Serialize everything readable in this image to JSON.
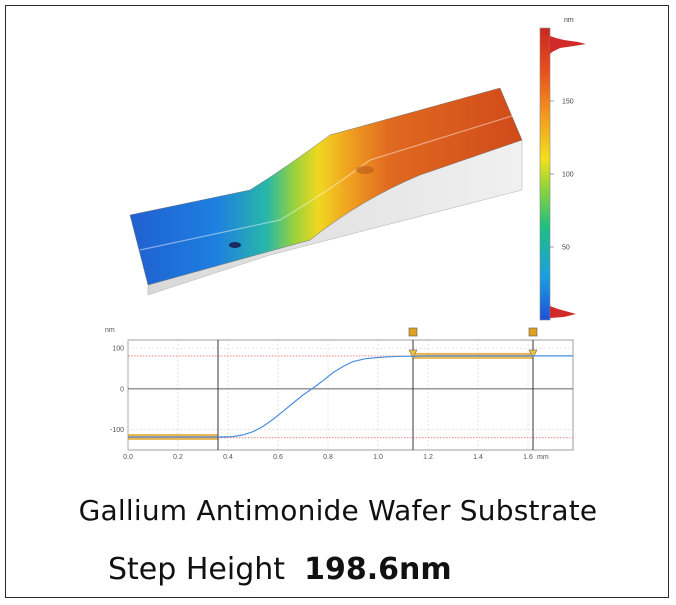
{
  "title": "Gallium Antimonide Wafer Substrate",
  "step": {
    "label": "Step Height",
    "value": "198.6nm"
  },
  "colorbar": {
    "unit": "nm",
    "ticks": [
      {
        "value": 150,
        "label": "150"
      },
      {
        "value": 100,
        "label": "100"
      },
      {
        "value": 50,
        "label": "50"
      }
    ],
    "range": [
      0,
      200
    ],
    "colors": [
      "#1f4fd8",
      "#1aa0e0",
      "#1fbf80",
      "#8fd43a",
      "#f2e01c",
      "#f39a1c",
      "#e8501f",
      "#c8281f"
    ]
  },
  "chart_data": {
    "type": "line",
    "ylabel": "nm",
    "xlabel": "",
    "x_unit": "mm",
    "xlim": [
      0.0,
      1.78
    ],
    "ylim": [
      -150,
      120
    ],
    "x_ticks": [
      {
        "value": 0.0,
        "label": "0.0"
      },
      {
        "value": 0.2,
        "label": "0.2"
      },
      {
        "value": 0.4,
        "label": "0.4"
      },
      {
        "value": 0.6,
        "label": "0.6"
      },
      {
        "value": 0.8,
        "label": "0.8"
      },
      {
        "value": 1.0,
        "label": "1.0"
      },
      {
        "value": 1.2,
        "label": "1.2"
      },
      {
        "value": 1.4,
        "label": "1.4"
      },
      {
        "value": 1.6,
        "label": "1.6"
      }
    ],
    "y_ticks": [
      {
        "value": 100,
        "label": "100"
      },
      {
        "value": 0,
        "label": "0"
      },
      {
        "value": -100,
        "label": "-100"
      }
    ],
    "series": [
      {
        "color": "#4a8fe0",
        "x": [
          0.0,
          0.1,
          0.2,
          0.3,
          0.36,
          0.42,
          0.46,
          0.5,
          0.54,
          0.58,
          0.62,
          0.66,
          0.7,
          0.74,
          0.78,
          0.82,
          0.86,
          0.9,
          0.95,
          1.0,
          1.05,
          1.1,
          1.15,
          1.2,
          1.3,
          1.4,
          1.5,
          1.6,
          1.7,
          1.78
        ],
        "y": [
          -118,
          -118,
          -118,
          -118,
          -118,
          -117,
          -113,
          -105,
          -92,
          -75,
          -55,
          -35,
          -15,
          2,
          20,
          40,
          55,
          67,
          74,
          77,
          79,
          80,
          80,
          81,
          81,
          81,
          81,
          81,
          81,
          81
        ]
      }
    ],
    "cursors": [
      0.36,
      1.14,
      1.62
    ],
    "level_bands": [
      {
        "x": [
          0.0,
          0.36
        ],
        "y": -118
      },
      {
        "x": [
          1.14,
          1.62
        ],
        "y": 81
      }
    ],
    "reference_lines": [
      {
        "y": -120,
        "color": "#e04040"
      },
      {
        "y": 81,
        "color": "#e04040"
      }
    ]
  }
}
